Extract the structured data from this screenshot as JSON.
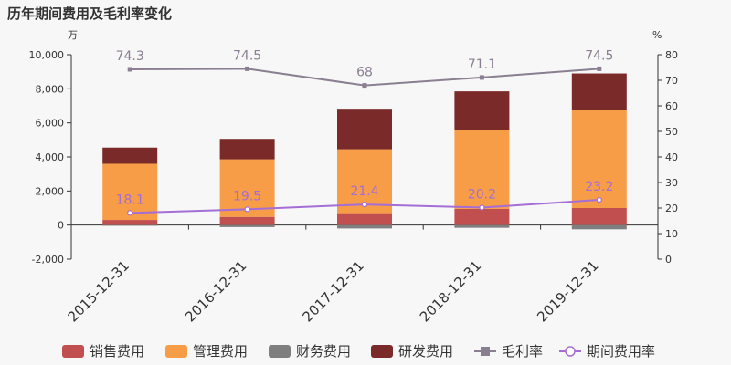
{
  "title": "历年期间费用及毛利率变化",
  "chart_data": {
    "type": "bar",
    "categories": [
      "2015-12-31",
      "2016-12-31",
      "2017-12-31",
      "2018-12-31",
      "2019-12-31"
    ],
    "y_left": {
      "unit": "万",
      "ylim": [
        -2000,
        10000
      ],
      "ticks": [
        -2000,
        0,
        2000,
        4000,
        6000,
        8000,
        10000
      ],
      "tick_labels": [
        "-2,000",
        "0",
        "2,000",
        "4,000",
        "6,000",
        "8,000",
        "10,000"
      ]
    },
    "y_right": {
      "unit": "%",
      "ylim": [
        0,
        80
      ],
      "ticks": [
        0,
        10,
        20,
        30,
        40,
        50,
        60,
        70,
        80
      ],
      "tick_labels": [
        "0",
        "10",
        "20",
        "30",
        "40",
        "50",
        "60",
        "70",
        "80"
      ]
    },
    "bar_series": [
      {
        "name": "销售费用",
        "color": "#c14f4f",
        "values": [
          300,
          480,
          700,
          950,
          1000
        ]
      },
      {
        "name": "管理费用",
        "color": "#f79c47",
        "values": [
          3300,
          3380,
          3750,
          4650,
          5750
        ]
      },
      {
        "name": "财务费用",
        "color": "#7f7f7f",
        "values": [
          -40,
          -120,
          -200,
          -160,
          -250
        ]
      },
      {
        "name": "研发费用",
        "color": "#7b2a2a",
        "values": [
          950,
          1200,
          2380,
          2250,
          2150
        ]
      }
    ],
    "line_series": [
      {
        "name": "毛利率",
        "color": "#8a7f91",
        "marker": "square",
        "axis": "right",
        "values": [
          74.3,
          74.5,
          68,
          71.1,
          74.5
        ],
        "labels": [
          "74.3",
          "74.5",
          "68",
          "71.1",
          "74.5"
        ]
      },
      {
        "name": "期间费用率",
        "color": "#a46ed6",
        "marker": "circle",
        "axis": "right",
        "values": [
          18.1,
          19.5,
          21.4,
          20.2,
          23.2
        ],
        "labels": [
          "18.1",
          "19.5",
          "21.4",
          "20.2",
          "23.2"
        ]
      }
    ],
    "legend_position": "bottom"
  }
}
